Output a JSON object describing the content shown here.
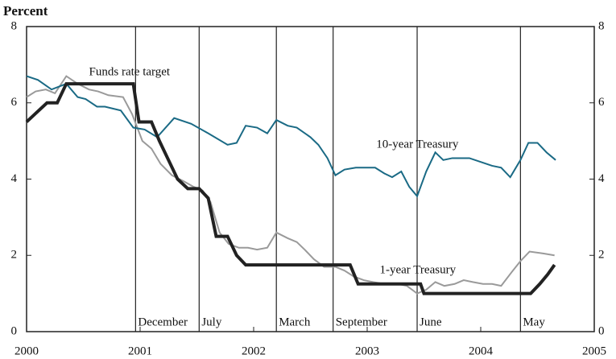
{
  "chart_data": {
    "type": "line",
    "ylabel": "Percent",
    "xlim": [
      2000,
      2005
    ],
    "xticks": [
      2000,
      2001,
      2002,
      2003,
      2004,
      2005
    ],
    "ylim": [
      0,
      8
    ],
    "yticks": [
      0,
      2,
      4,
      6,
      8
    ],
    "y2lim": [
      0,
      8
    ],
    "y2ticks": [
      0,
      2,
      4,
      6,
      8
    ],
    "annotations": [
      {
        "x": 2000.96,
        "label": "December"
      },
      {
        "x": 2001.52,
        "label": "July"
      },
      {
        "x": 2002.2,
        "label": "March"
      },
      {
        "x": 2002.7,
        "label": "September"
      },
      {
        "x": 2003.44,
        "label": "June"
      },
      {
        "x": 2004.35,
        "label": "May"
      }
    ],
    "series": [
      {
        "name": "Funds rate target",
        "color": "#222222",
        "x": [
          2000.0,
          2000.09,
          2000.18,
          2000.27,
          2000.35,
          2000.94,
          2000.99,
          2001.1,
          2001.17,
          2001.25,
          2001.33,
          2001.42,
          2001.52,
          2001.6,
          2001.67,
          2001.77,
          2001.85,
          2001.93,
          2002.85,
          2002.92,
          2003.47,
          2003.5,
          2004.44,
          2004.52,
          2004.59,
          2004.65
        ],
        "values": [
          5.5,
          5.75,
          6.0,
          6.0,
          6.5,
          6.5,
          5.5,
          5.5,
          5.0,
          4.5,
          4.0,
          3.75,
          3.75,
          3.5,
          2.5,
          2.5,
          2.0,
          1.75,
          1.75,
          1.25,
          1.25,
          1.0,
          1.0,
          1.25,
          1.5,
          1.75
        ]
      },
      {
        "name": "10-year Treasury",
        "color": "#1a6a85",
        "x": [
          2000.0,
          2000.1,
          2000.22,
          2000.35,
          2000.45,
          2000.52,
          2000.62,
          2000.69,
          2000.83,
          2000.94,
          2001.04,
          2001.15,
          2001.3,
          2001.45,
          2001.6,
          2001.77,
          2001.85,
          2001.93,
          2002.03,
          2002.12,
          2002.2,
          2002.3,
          2002.38,
          2002.5,
          2002.57,
          2002.65,
          2002.72,
          2002.8,
          2002.9,
          2003.0,
          2003.07,
          2003.15,
          2003.22,
          2003.3,
          2003.37,
          2003.44,
          2003.52,
          2003.6,
          2003.67,
          2003.75,
          2003.9,
          2004.0,
          2004.1,
          2004.18,
          2004.26,
          2004.35,
          2004.42,
          2004.5,
          2004.58,
          2004.66
        ],
        "values": [
          6.7,
          6.6,
          6.35,
          6.5,
          6.15,
          6.1,
          5.9,
          5.9,
          5.8,
          5.35,
          5.3,
          5.1,
          5.6,
          5.45,
          5.2,
          4.9,
          4.95,
          5.4,
          5.35,
          5.2,
          5.55,
          5.4,
          5.35,
          5.1,
          4.9,
          4.55,
          4.1,
          4.25,
          4.3,
          4.3,
          4.3,
          4.15,
          4.05,
          4.2,
          3.8,
          3.55,
          4.2,
          4.7,
          4.5,
          4.55,
          4.55,
          4.45,
          4.35,
          4.3,
          4.05,
          4.5,
          4.95,
          4.95,
          4.7,
          4.5
        ]
      },
      {
        "name": "1-year Treasury",
        "color": "#9a9a9a",
        "x": [
          2000.0,
          2000.08,
          2000.17,
          2000.25,
          2000.35,
          2000.45,
          2000.55,
          2000.63,
          2000.72,
          2000.85,
          2000.93,
          2001.02,
          2001.1,
          2001.18,
          2001.28,
          2001.38,
          2001.47,
          2001.55,
          2001.62,
          2001.7,
          2001.78,
          2001.87,
          2001.95,
          2002.03,
          2002.12,
          2002.2,
          2002.3,
          2002.38,
          2002.45,
          2002.53,
          2002.62,
          2002.72,
          2002.8,
          2002.88,
          2002.97,
          2003.05,
          2003.15,
          2003.27,
          2003.35,
          2003.44,
          2003.52,
          2003.6,
          2003.68,
          2003.77,
          2003.85,
          2003.93,
          2004.02,
          2004.1,
          2004.18,
          2004.27,
          2004.35,
          2004.43,
          2004.55,
          2004.65
        ],
        "values": [
          6.15,
          6.3,
          6.35,
          6.25,
          6.7,
          6.5,
          6.35,
          6.3,
          6.2,
          6.15,
          5.7,
          5.0,
          4.8,
          4.4,
          4.1,
          3.95,
          3.8,
          3.7,
          3.4,
          2.6,
          2.3,
          2.2,
          2.2,
          2.15,
          2.2,
          2.6,
          2.45,
          2.35,
          2.15,
          1.9,
          1.7,
          1.7,
          1.6,
          1.45,
          1.35,
          1.3,
          1.25,
          1.25,
          1.2,
          1.0,
          1.1,
          1.3,
          1.2,
          1.25,
          1.35,
          1.3,
          1.25,
          1.25,
          1.2,
          1.55,
          1.85,
          2.1,
          2.05,
          2.0
        ]
      }
    ]
  }
}
